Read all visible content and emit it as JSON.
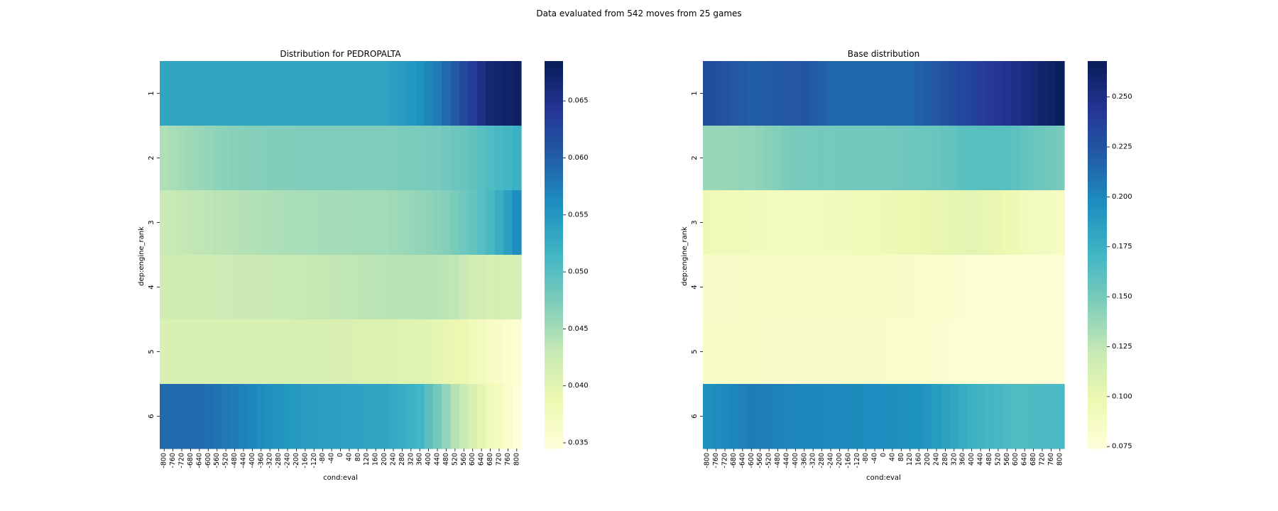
{
  "suptitle": "Data evaluated from 542 moves from 25 games",
  "chart_data": [
    {
      "type": "heatmap",
      "title": "Distribution for PEDROPALTA",
      "xlabel": "cond:eval",
      "ylabel": "dep:engine_rank",
      "x_categories": [
        "-800",
        "-760",
        "-720",
        "-680",
        "-640",
        "-600",
        "-560",
        "-520",
        "-480",
        "-440",
        "-400",
        "-360",
        "-320",
        "-280",
        "-240",
        "-200",
        "-160",
        "-120",
        "-80",
        "-40",
        "0",
        "40",
        "80",
        "120",
        "160",
        "200",
        "240",
        "280",
        "320",
        "360",
        "400",
        "440",
        "480",
        "520",
        "560",
        "600",
        "640",
        "680",
        "720",
        "760",
        "800"
      ],
      "y_categories": [
        "1",
        "2",
        "3",
        "4",
        "5",
        "6"
      ],
      "colormap": "YlGnBu",
      "colorbar": {
        "min": 0.0345,
        "max": 0.0685,
        "ticks": [
          "0.035",
          "0.040",
          "0.045",
          "0.050",
          "0.055",
          "0.060",
          "0.065"
        ]
      },
      "rows": [
        {
          "label": "1",
          "anchors": [
            [
              -800,
              0.0535
            ],
            [
              -400,
              0.0535
            ],
            [
              200,
              0.0535
            ],
            [
              280,
              0.0545
            ],
            [
              360,
              0.0555
            ],
            [
              440,
              0.0575
            ],
            [
              520,
              0.0605
            ],
            [
              600,
              0.0635
            ],
            [
              680,
              0.0665
            ],
            [
              800,
              0.0678
            ]
          ]
        },
        {
          "label": "2",
          "anchors": [
            [
              -800,
              0.0445
            ],
            [
              -640,
              0.0458
            ],
            [
              -480,
              0.0468
            ],
            [
              -200,
              0.0472
            ],
            [
              200,
              0.0472
            ],
            [
              440,
              0.0478
            ],
            [
              560,
              0.0488
            ],
            [
              680,
              0.0505
            ],
            [
              800,
              0.052
            ]
          ]
        },
        {
          "label": "3",
          "anchors": [
            [
              -800,
              0.0428
            ],
            [
              -480,
              0.044
            ],
            [
              -200,
              0.0448
            ],
            [
              200,
              0.0452
            ],
            [
              360,
              0.046
            ],
            [
              480,
              0.047
            ],
            [
              600,
              0.049
            ],
            [
              680,
              0.051
            ],
            [
              760,
              0.054
            ],
            [
              800,
              0.056
            ]
          ]
        },
        {
          "label": "4",
          "anchors": [
            [
              -800,
              0.042
            ],
            [
              -400,
              0.0425
            ],
            [
              -80,
              0.0432
            ],
            [
              200,
              0.0438
            ],
            [
              400,
              0.044
            ],
            [
              520,
              0.0435
            ],
            [
              600,
              0.042
            ],
            [
              680,
              0.0415
            ],
            [
              800,
              0.0412
            ]
          ]
        },
        {
          "label": "5",
          "anchors": [
            [
              -800,
              0.041
            ],
            [
              -200,
              0.041
            ],
            [
              200,
              0.0408
            ],
            [
              400,
              0.04
            ],
            [
              480,
              0.0392
            ],
            [
              560,
              0.0385
            ],
            [
              640,
              0.0375
            ],
            [
              720,
              0.0362
            ],
            [
              800,
              0.0352
            ]
          ]
        },
        {
          "label": "6",
          "anchors": [
            [
              -800,
              0.059
            ],
            [
              -640,
              0.059
            ],
            [
              -480,
              0.0575
            ],
            [
              -320,
              0.0555
            ],
            [
              -160,
              0.0545
            ],
            [
              200,
              0.0535
            ],
            [
              280,
              0.0525
            ],
            [
              360,
              0.0515
            ],
            [
              440,
              0.048
            ],
            [
              520,
              0.044
            ],
            [
              600,
              0.041
            ],
            [
              680,
              0.038
            ],
            [
              760,
              0.036
            ],
            [
              800,
              0.0348
            ]
          ]
        }
      ]
    },
    {
      "type": "heatmap",
      "title": "Base distribution",
      "xlabel": "cond:eval",
      "ylabel": "dep:engine_rank",
      "x_categories": [
        "-800",
        "-760",
        "-720",
        "-680",
        "-640",
        "-600",
        "-560",
        "-520",
        "-480",
        "-440",
        "-400",
        "-360",
        "-320",
        "-280",
        "-240",
        "-200",
        "-160",
        "-120",
        "-80",
        "-40",
        "0",
        "40",
        "80",
        "120",
        "160",
        "200",
        "240",
        "280",
        "320",
        "360",
        "400",
        "440",
        "480",
        "520",
        "560",
        "600",
        "640",
        "680",
        "720",
        "760",
        "800"
      ],
      "y_categories": [
        "1",
        "2",
        "3",
        "4",
        "5",
        "6"
      ],
      "colormap": "YlGnBu",
      "colorbar": {
        "min": 0.074,
        "max": 0.268,
        "ticks": [
          "0.075",
          "0.100",
          "0.125",
          "0.150",
          "0.175",
          "0.200",
          "0.225",
          "0.250"
        ]
      },
      "rows": [
        {
          "label": "1",
          "anchors": [
            [
              -800,
              0.23
            ],
            [
              -600,
              0.22
            ],
            [
              -360,
              0.225
            ],
            [
              -240,
              0.215
            ],
            [
              120,
              0.215
            ],
            [
              320,
              0.23
            ],
            [
              440,
              0.238
            ],
            [
              600,
              0.248
            ],
            [
              720,
              0.26
            ],
            [
              800,
              0.266
            ]
          ]
        },
        {
          "label": "2",
          "anchors": [
            [
              -800,
              0.138
            ],
            [
              -600,
              0.14
            ],
            [
              -400,
              0.15
            ],
            [
              0,
              0.152
            ],
            [
              240,
              0.155
            ],
            [
              400,
              0.162
            ],
            [
              560,
              0.162
            ],
            [
              680,
              0.155
            ],
            [
              800,
              0.15
            ]
          ]
        },
        {
          "label": "3",
          "anchors": [
            [
              -800,
              0.095
            ],
            [
              -600,
              0.093
            ],
            [
              -400,
              0.09
            ],
            [
              0,
              0.095
            ],
            [
              200,
              0.1
            ],
            [
              400,
              0.105
            ],
            [
              560,
              0.098
            ],
            [
              680,
              0.09
            ],
            [
              800,
              0.088
            ]
          ]
        },
        {
          "label": "4",
          "anchors": [
            [
              -800,
              0.083
            ],
            [
              -400,
              0.084
            ],
            [
              0,
              0.085
            ],
            [
              200,
              0.082
            ],
            [
              400,
              0.079
            ],
            [
              600,
              0.078
            ],
            [
              800,
              0.077
            ]
          ]
        },
        {
          "label": "5",
          "anchors": [
            [
              -800,
              0.084
            ],
            [
              -400,
              0.083
            ],
            [
              0,
              0.083
            ],
            [
              200,
              0.08
            ],
            [
              400,
              0.078
            ],
            [
              600,
              0.077
            ],
            [
              800,
              0.076
            ]
          ]
        },
        {
          "label": "6",
          "anchors": [
            [
              -800,
              0.195
            ],
            [
              -600,
              0.205
            ],
            [
              -360,
              0.2
            ],
            [
              -120,
              0.198
            ],
            [
              160,
              0.195
            ],
            [
              280,
              0.185
            ],
            [
              440,
              0.172
            ],
            [
              600,
              0.165
            ],
            [
              800,
              0.168
            ]
          ]
        }
      ]
    }
  ]
}
